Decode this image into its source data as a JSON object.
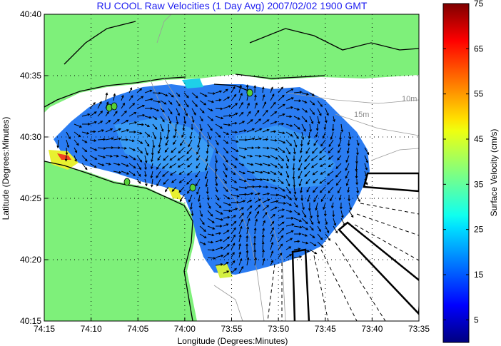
{
  "chart_data": {
    "type": "heatmap",
    "title": "RU COOL Raw Velocities (1 Day Avg) 2007/02/02 1900 GMT",
    "xlabel": "Longitude (Degrees:Minutes)",
    "ylabel": "Latitude (Degrees:Minutes)",
    "x_ticks": [
      "74:15",
      "74:10",
      "74:05",
      "74:00",
      "73:55",
      "73:50",
      "73:45",
      "73:40",
      "73:35"
    ],
    "y_ticks": [
      "40:40",
      "40:35",
      "40:30",
      "40:25",
      "40:20",
      "40:15"
    ],
    "xlim_deg": [
      -74.25,
      -73.5833
    ],
    "ylim_deg": [
      40.25,
      40.6667
    ],
    "grid": true,
    "colorbar": {
      "label": "Surface Velocity (cm/s)",
      "ticks": [
        5,
        15,
        25,
        35,
        45,
        55,
        65,
        75
      ],
      "range": [
        0,
        75
      ],
      "colormap": "jet"
    },
    "isobath_labels": [
      "10m",
      "15m"
    ],
    "colors": {
      "land": "#7ef07a",
      "water_low": "#1e6ef0",
      "water_mid": "#3aa0f5",
      "contour": "#9a9a9a",
      "title": "#1d1df0"
    }
  }
}
